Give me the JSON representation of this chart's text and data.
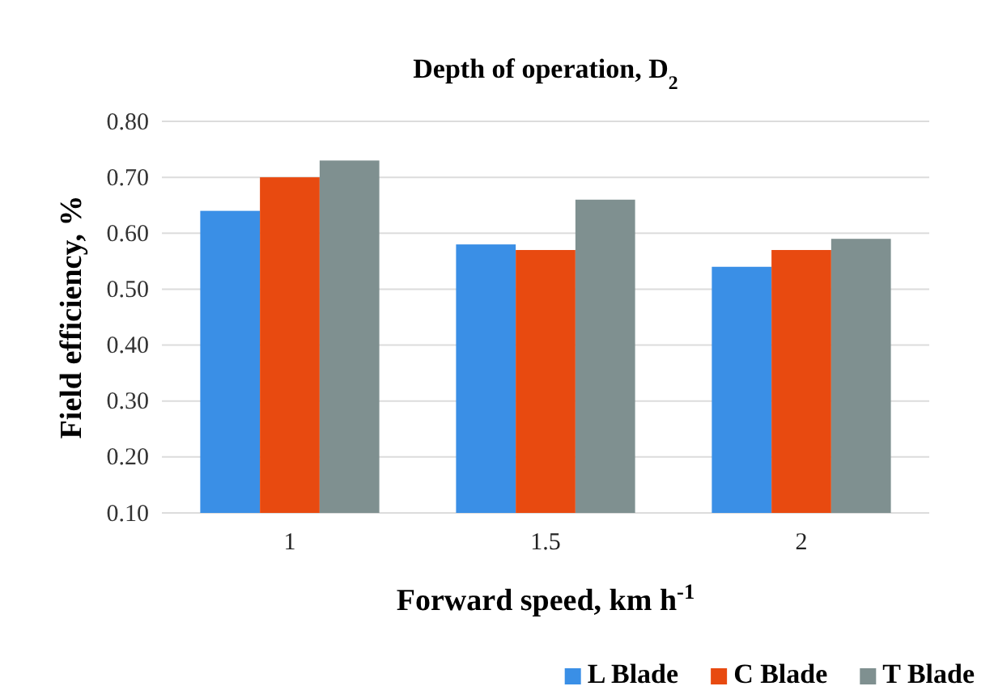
{
  "chart_data": {
    "type": "bar",
    "title": "Depth of operation, D$_{2}$",
    "xlabel": "Forward speed, km h$^{-1}$",
    "ylabel": "Field efficiency, %",
    "categories": [
      "1",
      "1.5",
      "2"
    ],
    "series": [
      {
        "name": "L Blade",
        "color": "#3a8fe6",
        "values": [
          0.64,
          0.58,
          0.54
        ]
      },
      {
        "name": "C Blade",
        "color": "#e84a10",
        "values": [
          0.7,
          0.57,
          0.57
        ]
      },
      {
        "name": "T Blade",
        "color": "#7f9090",
        "values": [
          0.73,
          0.66,
          0.59
        ]
      }
    ],
    "ylim": [
      0.1,
      0.8
    ],
    "yticks": [
      {
        "value": 0.1,
        "label": "0.10"
      },
      {
        "value": 0.2,
        "label": "0.20"
      },
      {
        "value": 0.3,
        "label": "0.30"
      },
      {
        "value": 0.4,
        "label": "0.40"
      },
      {
        "value": 0.5,
        "label": "0.50"
      },
      {
        "value": 0.6,
        "label": "0.60"
      },
      {
        "value": 0.7,
        "label": "0.70"
      },
      {
        "value": 0.8,
        "label": "0.80"
      }
    ],
    "grid": "y",
    "legend": "bottom right"
  }
}
